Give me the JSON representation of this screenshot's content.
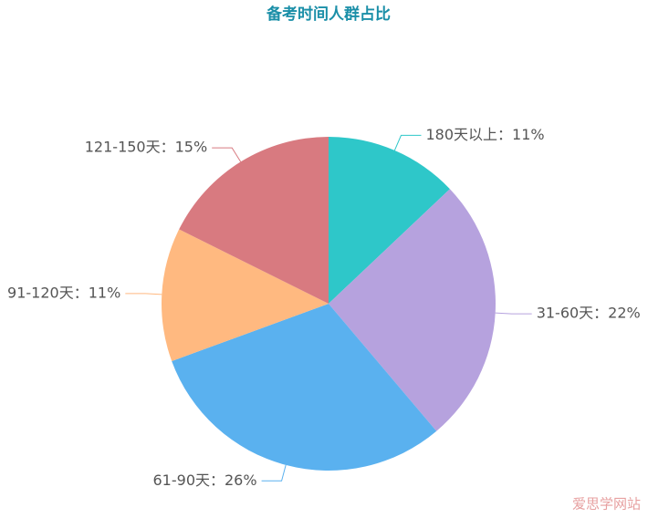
{
  "chart_data": {
    "type": "pie",
    "title": "备考时间人群占比",
    "categories": [
      "180天以上：11%",
      "31-60天：22%",
      "61-90天：26%",
      "91-120天：11%",
      "121-150天：15%"
    ],
    "values": [
      11,
      22,
      26,
      11,
      15
    ],
    "colors": [
      "#2ec7c9",
      "#b6a2de",
      "#5ab1ef",
      "#ffb980",
      "#d87a80"
    ],
    "start_angle": 90,
    "direction": "clockwise"
  },
  "watermark": "爱思学网站"
}
